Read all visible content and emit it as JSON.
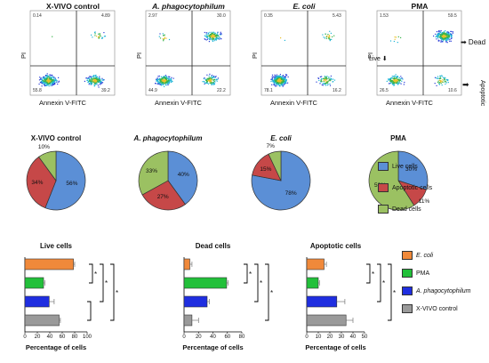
{
  "chart_data": [
    {
      "type": "scatter",
      "kind": "flow-cytometry",
      "panels": [
        {
          "title": "X-VIVO control",
          "italic": false,
          "quadrants": {
            "ul": "0.14",
            "ur": "4.89",
            "ll": "55.8",
            "lr": "39.2"
          }
        },
        {
          "title": "A. phagocytophilum",
          "italic": true,
          "quadrants": {
            "ul": "2.97",
            "ur": "30.0",
            "ll": "44.9",
            "lr": "22.2"
          }
        },
        {
          "title": "E. coli",
          "italic": true,
          "quadrants": {
            "ul": "0.35",
            "ur": "5.43",
            "ll": "78.1",
            "lr": "16.2"
          }
        },
        {
          "title": "PMA",
          "italic": false,
          "quadrants": {
            "ul": "1.53",
            "ur": "59.5",
            "ll": "26.5",
            "lr": "10.6"
          }
        }
      ],
      "xlabel": "Annexin V-FITC",
      "ylabel": "PI",
      "annotations": {
        "dead": "Dead",
        "live": "Live",
        "apoptotic": "Apoptotic"
      }
    },
    {
      "type": "pie",
      "categories": [
        "Live cells",
        "Apoptotic cells",
        "Dead cells"
      ],
      "colors": [
        "#5b8fd6",
        "#c64848",
        "#9bc162"
      ],
      "pies": [
        {
          "title": "X-VIVO control",
          "italic": false,
          "values": [
            56,
            34,
            10
          ],
          "labels": [
            "56%",
            "34%",
            "10%"
          ]
        },
        {
          "title": "A. phagocytophilum",
          "italic": true,
          "values": [
            40,
            27,
            33
          ],
          "labels": [
            "40%",
            "27%",
            "33%"
          ]
        },
        {
          "title": "E. coli",
          "italic": true,
          "values": [
            78,
            15,
            7
          ],
          "labels": [
            "78%",
            "15%",
            "7%"
          ]
        },
        {
          "title": "PMA",
          "italic": false,
          "values": [
            30,
            11,
            59
          ],
          "labels": [
            "30%",
            "11%",
            "59%"
          ]
        }
      ]
    },
    {
      "type": "bar",
      "orientation": "horizontal",
      "categories": [
        "E. coli",
        "PMA",
        "A. phagocytophilum",
        "X-VIVO control"
      ],
      "colors": [
        "#f0893a",
        "#22c03a",
        "#1f2ee0",
        "#9a9a9a"
      ],
      "xlabel": "Percentage of cells",
      "panels": [
        {
          "title": "Live cells",
          "values": [
            78,
            30,
            39,
            55
          ],
          "errors": [
            2,
            2,
            8,
            2
          ],
          "xlim": [
            0,
            100
          ],
          "ticks": [
            "0",
            "20",
            "40",
            "60",
            "80",
            "100"
          ]
        },
        {
          "title": "Dead cells",
          "values": [
            8,
            59,
            32,
            11
          ],
          "errors": [
            3,
            2,
            3,
            9
          ],
          "xlim": [
            0,
            80
          ],
          "ticks": [
            "0",
            "20",
            "40",
            "60",
            "80"
          ]
        },
        {
          "title": "Apoptotic cells",
          "values": [
            15,
            10,
            26,
            34
          ],
          "errors": [
            2,
            1,
            7,
            6
          ],
          "xlim": [
            0,
            50
          ],
          "ticks": [
            "0",
            "10",
            "20",
            "30",
            "40",
            "50"
          ]
        }
      ],
      "significance": "*"
    }
  ]
}
